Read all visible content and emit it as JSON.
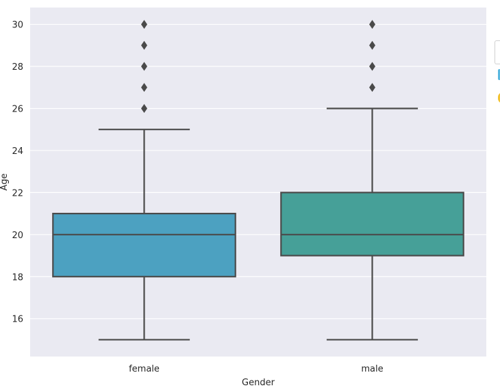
{
  "chart_data": {
    "type": "box",
    "xlabel": "Gender",
    "ylabel": "Age",
    "ylim": [
      14.2,
      30.8
    ],
    "yticks": [
      16,
      18,
      20,
      22,
      24,
      26,
      28,
      30
    ],
    "grid": true,
    "background_color": "#eaeaf2",
    "grid_color": "#ffffff",
    "line_color": "#4a4a4a",
    "categories": [
      "female",
      "male"
    ],
    "boxes": [
      {
        "category": "female",
        "color": "#4ca1c1",
        "whisker_low": 15,
        "q1": 18,
        "median": 20,
        "q3": 21,
        "whisker_high": 25,
        "outliers": [
          26,
          27,
          28,
          29,
          30
        ]
      },
      {
        "category": "male",
        "color": "#46a098",
        "whisker_low": 15,
        "q1": 19,
        "median": 20,
        "q3": 22,
        "whisker_high": 26,
        "outliers": [
          27,
          28,
          29,
          30
        ]
      }
    ]
  }
}
